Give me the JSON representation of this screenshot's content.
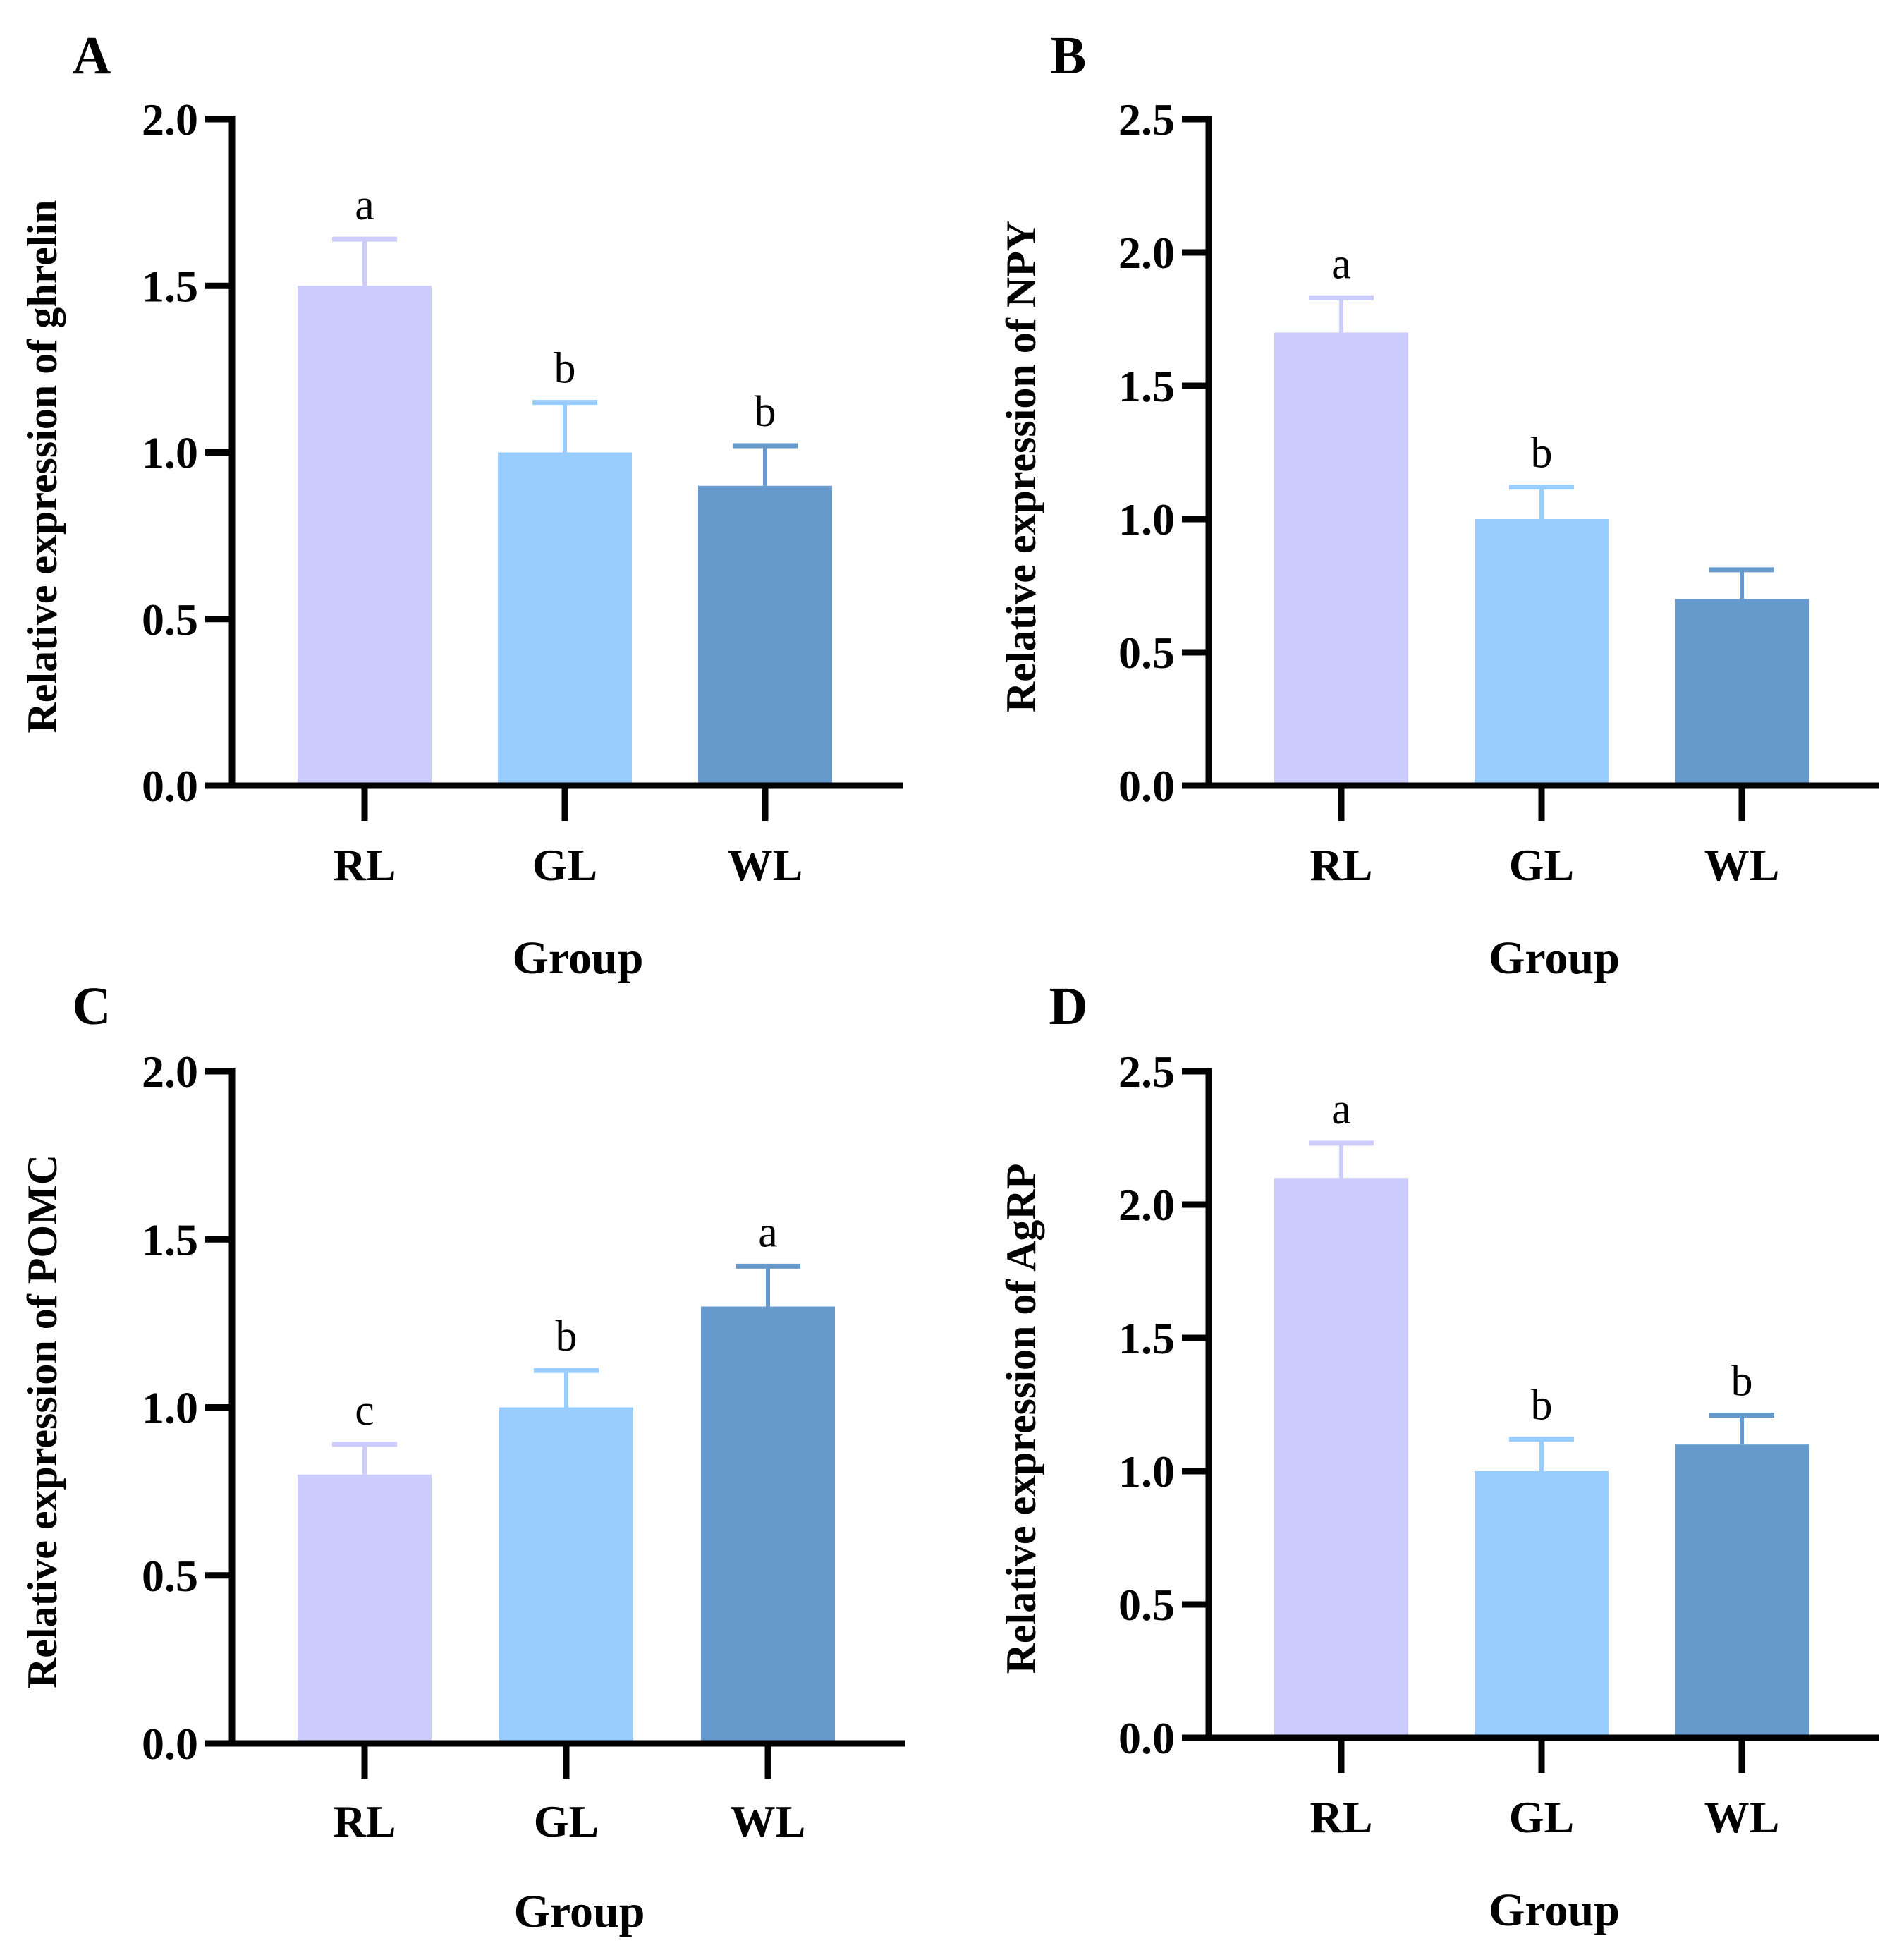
{
  "colors": {
    "RL": "#CCCCFF",
    "GL": "#99CCFF",
    "WL": "#6699CC",
    "axis": "#000000"
  },
  "chart_data": [
    {
      "panel": "A",
      "type": "bar",
      "categories": [
        "RL",
        "GL",
        "WL"
      ],
      "values": [
        1.5,
        1.0,
        0.9
      ],
      "errors": [
        0.14,
        0.15,
        0.12
      ],
      "sig_letters": [
        "a",
        "b",
        "b"
      ],
      "xlabel": "Group",
      "ylabel": "Relative expression of ghrelin",
      "ylim": [
        0,
        2.0
      ],
      "yticks": [
        "0.0",
        "0.5",
        "1.0",
        "1.5",
        "2.0"
      ]
    },
    {
      "panel": "B",
      "type": "bar",
      "categories": [
        "RL",
        "GL",
        "WL"
      ],
      "values": [
        1.7,
        1.0,
        0.7
      ],
      "errors": [
        0.13,
        0.12,
        0.11
      ],
      "sig_letters": [
        "a",
        "b",
        ""
      ],
      "xlabel": "Group",
      "ylabel": "Relative expression of NPY",
      "ylim": [
        0,
        2.5
      ],
      "yticks": [
        "0.0",
        "0.5",
        "1.0",
        "1.5",
        "2.0",
        "2.5"
      ]
    },
    {
      "panel": "C",
      "type": "bar",
      "categories": [
        "RL",
        "GL",
        "WL"
      ],
      "values": [
        0.8,
        1.0,
        1.3
      ],
      "errors": [
        0.09,
        0.11,
        0.12
      ],
      "sig_letters": [
        "c",
        "b",
        "a"
      ],
      "xlabel": "Group",
      "ylabel": "Relative expression of POMC",
      "ylim": [
        0,
        2.0
      ],
      "yticks": [
        "0.0",
        "0.5",
        "1.0",
        "1.5",
        "2.0"
      ]
    },
    {
      "panel": "D",
      "type": "bar",
      "categories": [
        "RL",
        "GL",
        "WL"
      ],
      "values": [
        2.1,
        1.0,
        1.1
      ],
      "errors": [
        0.13,
        0.12,
        0.11
      ],
      "sig_letters": [
        "a",
        "b",
        "b"
      ],
      "xlabel": "Group",
      "ylabel": "Relative expression of AgRP",
      "ylim": [
        0,
        2.5
      ],
      "yticks": [
        "0.0",
        "0.5",
        "1.0",
        "1.5",
        "2.0",
        "2.5"
      ]
    }
  ]
}
